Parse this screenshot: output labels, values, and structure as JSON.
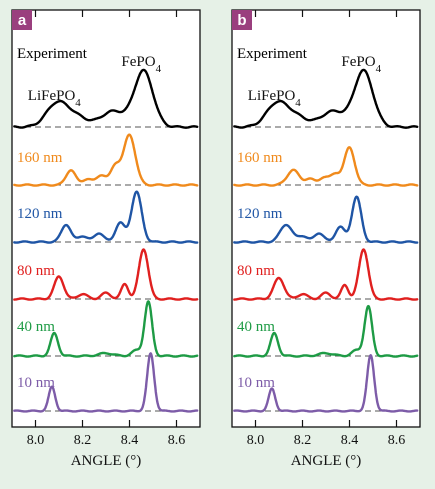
{
  "chart_data": [
    {
      "type": "line",
      "panel_label": "a",
      "xlabel": "ANGLE (°)",
      "xlim": [
        7.9,
        8.7
      ],
      "xticks": [
        "8.0",
        "8.2",
        "8.4",
        "8.6"
      ],
      "grid": false,
      "stacking": "vertical offset, dashed zero line per trace",
      "annotations": [
        {
          "text": "LiFePO",
          "sub": "4",
          "x": 8.08
        },
        {
          "text": "FePO",
          "sub": "4",
          "x": 8.45
        }
      ],
      "series": [
        {
          "name": "Experiment",
          "color": "#000000",
          "peaks": [
            {
              "center": 8.09,
              "height": 0.4,
              "width": 0.045
            },
            {
              "center": 8.17,
              "height": 0.18,
              "width": 0.05
            },
            {
              "center": 8.33,
              "height": 0.28,
              "width": 0.05
            },
            {
              "center": 8.46,
              "height": 1.0,
              "width": 0.04
            }
          ]
        },
        {
          "name": "160 nm",
          "color": "#f08a1c",
          "peaks": [
            {
              "center": 8.15,
              "height": 0.3,
              "width": 0.02
            },
            {
              "center": 8.22,
              "height": 0.12,
              "width": 0.02
            },
            {
              "center": 8.28,
              "height": 0.2,
              "width": 0.02
            },
            {
              "center": 8.34,
              "height": 0.38,
              "width": 0.02
            },
            {
              "center": 8.4,
              "height": 1.0,
              "width": 0.025
            }
          ]
        },
        {
          "name": "120 nm",
          "color": "#1f55a5",
          "peaks": [
            {
              "center": 8.13,
              "height": 0.35,
              "width": 0.02
            },
            {
              "center": 8.2,
              "height": 0.12,
              "width": 0.02
            },
            {
              "center": 8.27,
              "height": 0.18,
              "width": 0.02
            },
            {
              "center": 8.36,
              "height": 0.38,
              "width": 0.02
            },
            {
              "center": 8.43,
              "height": 1.0,
              "width": 0.022
            }
          ]
        },
        {
          "name": "80 nm",
          "color": "#e0201f",
          "peaks": [
            {
              "center": 8.1,
              "height": 0.45,
              "width": 0.02
            },
            {
              "center": 8.2,
              "height": 0.1,
              "width": 0.02
            },
            {
              "center": 8.3,
              "height": 0.12,
              "width": 0.02
            },
            {
              "center": 8.38,
              "height": 0.3,
              "width": 0.015
            },
            {
              "center": 8.46,
              "height": 1.0,
              "width": 0.02
            }
          ]
        },
        {
          "name": "40 nm",
          "color": "#1e9b45",
          "peaks": [
            {
              "center": 8.08,
              "height": 0.48,
              "width": 0.016
            },
            {
              "center": 8.3,
              "height": 0.06,
              "width": 0.03
            },
            {
              "center": 8.43,
              "height": 0.12,
              "width": 0.02
            },
            {
              "center": 8.48,
              "height": 1.15,
              "width": 0.016
            }
          ]
        },
        {
          "name": "10 nm",
          "color": "#7d5ca8",
          "peaks": [
            {
              "center": 8.07,
              "height": 0.65,
              "width": 0.014
            },
            {
              "center": 8.49,
              "height": 1.55,
              "width": 0.015
            }
          ]
        }
      ]
    },
    {
      "type": "line",
      "panel_label": "b",
      "xlabel": "ANGLE (°)",
      "xlim": [
        7.9,
        8.7
      ],
      "xticks": [
        "8.0",
        "8.2",
        "8.4",
        "8.6"
      ],
      "grid": false,
      "stacking": "vertical offset, dashed zero line per trace",
      "annotations": [
        {
          "text": "LiFePO",
          "sub": "4",
          "x": 8.08
        },
        {
          "text": "FePO",
          "sub": "4",
          "x": 8.45
        }
      ],
      "series": [
        {
          "name": "Experiment",
          "color": "#000000",
          "peaks": [
            {
              "center": 8.09,
              "height": 0.4,
              "width": 0.045
            },
            {
              "center": 8.17,
              "height": 0.18,
              "width": 0.05
            },
            {
              "center": 8.33,
              "height": 0.28,
              "width": 0.05
            },
            {
              "center": 8.46,
              "height": 1.0,
              "width": 0.04
            }
          ]
        },
        {
          "name": "160 nm",
          "color": "#f08a1c",
          "peaks": [
            {
              "center": 8.16,
              "height": 0.3,
              "width": 0.025
            },
            {
              "center": 8.23,
              "height": 0.12,
              "width": 0.02
            },
            {
              "center": 8.29,
              "height": 0.15,
              "width": 0.02
            },
            {
              "center": 8.34,
              "height": 0.22,
              "width": 0.02
            },
            {
              "center": 8.4,
              "height": 0.75,
              "width": 0.022
            }
          ]
        },
        {
          "name": "120 nm",
          "color": "#1f55a5",
          "peaks": [
            {
              "center": 8.13,
              "height": 0.35,
              "width": 0.025
            },
            {
              "center": 8.2,
              "height": 0.12,
              "width": 0.02
            },
            {
              "center": 8.27,
              "height": 0.18,
              "width": 0.02
            },
            {
              "center": 8.36,
              "height": 0.3,
              "width": 0.02
            },
            {
              "center": 8.43,
              "height": 0.9,
              "width": 0.02
            }
          ]
        },
        {
          "name": "80 nm",
          "color": "#e0201f",
          "peaks": [
            {
              "center": 8.1,
              "height": 0.42,
              "width": 0.022
            },
            {
              "center": 8.2,
              "height": 0.1,
              "width": 0.02
            },
            {
              "center": 8.3,
              "height": 0.12,
              "width": 0.02
            },
            {
              "center": 8.38,
              "height": 0.28,
              "width": 0.015
            },
            {
              "center": 8.46,
              "height": 1.0,
              "width": 0.02
            }
          ]
        },
        {
          "name": "40 nm",
          "color": "#1e9b45",
          "peaks": [
            {
              "center": 8.08,
              "height": 0.48,
              "width": 0.016
            },
            {
              "center": 8.3,
              "height": 0.06,
              "width": 0.03
            },
            {
              "center": 8.43,
              "height": 0.12,
              "width": 0.02
            },
            {
              "center": 8.48,
              "height": 1.05,
              "width": 0.016
            }
          ]
        },
        {
          "name": "10 nm",
          "color": "#7d5ca8",
          "peaks": [
            {
              "center": 8.07,
              "height": 0.6,
              "width": 0.014
            },
            {
              "center": 8.49,
              "height": 1.5,
              "width": 0.015
            }
          ]
        }
      ]
    }
  ],
  "colors": {
    "panel_tag": "#9a3f7e",
    "background": "#e6f1e7"
  }
}
